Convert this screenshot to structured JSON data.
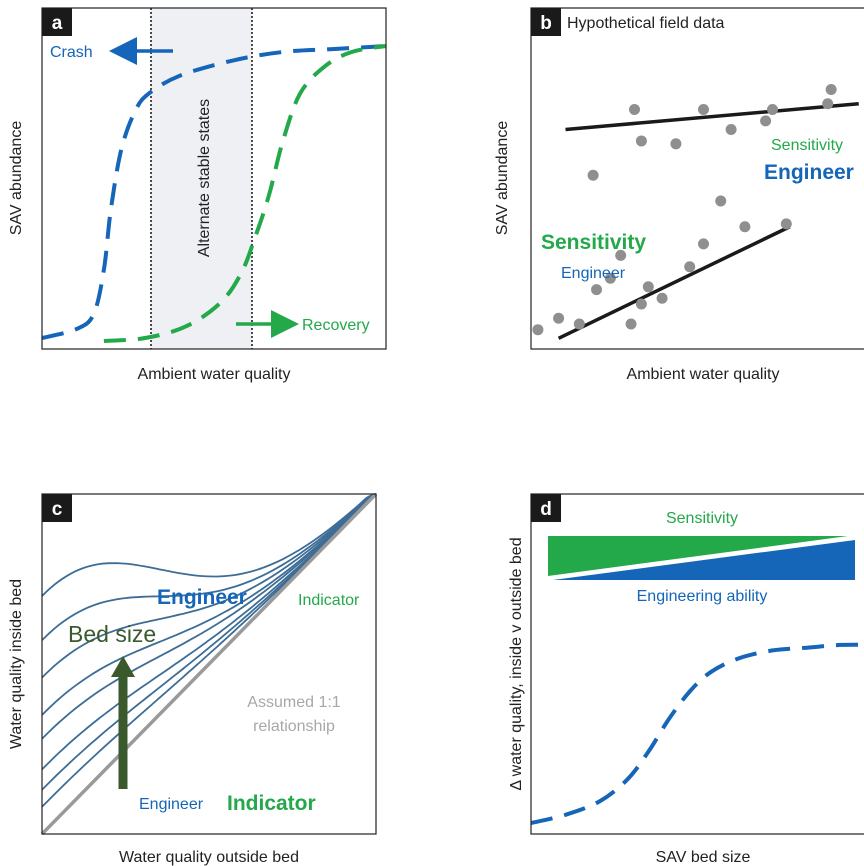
{
  "colors": {
    "blue": "#1565b8",
    "green": "#23a84a",
    "dark_green": "#3a5a2e",
    "gray_line": "#9a9a9a",
    "gray_dot": "#8f8f8f",
    "shade": "#eef0f4",
    "badge": "#1a1a1a"
  },
  "chart_data": [
    {
      "panel": "a",
      "type": "line",
      "title": "",
      "xlabel": "Ambient water quality",
      "ylabel": "SAV abundance",
      "xlim": [
        0,
        1
      ],
      "ylim": [
        0,
        1
      ],
      "shaded_band": {
        "x": [
          0.31,
          0.62
        ],
        "label": "Alternate stable states"
      },
      "series": [
        {
          "color": "blue",
          "style": "dashed",
          "x": [
            0.0,
            0.1,
            0.15,
            0.18,
            0.2,
            0.23,
            0.27,
            0.31,
            0.4,
            0.55,
            0.7,
            0.85,
            1.0
          ],
          "y": [
            0.02,
            0.05,
            0.1,
            0.25,
            0.45,
            0.65,
            0.78,
            0.84,
            0.9,
            0.95,
            0.98,
            0.99,
            1.0
          ]
        },
        {
          "color": "green",
          "style": "dashed",
          "x": [
            0.18,
            0.3,
            0.42,
            0.52,
            0.58,
            0.62,
            0.66,
            0.7,
            0.75,
            0.82,
            0.9,
            1.0
          ],
          "y": [
            0.01,
            0.02,
            0.06,
            0.14,
            0.24,
            0.36,
            0.5,
            0.68,
            0.84,
            0.93,
            0.98,
            1.0
          ]
        }
      ],
      "annotations": {
        "crash": "Crash",
        "recovery": "Recovery"
      }
    },
    {
      "panel": "b",
      "type": "scatter",
      "title": "Hypothetical field data",
      "xlabel": "Ambient water quality",
      "ylabel": "SAV abundance",
      "xlim": [
        0,
        1
      ],
      "ylim": [
        0,
        1
      ],
      "points": [
        {
          "x": 0.02,
          "y": 0.05
        },
        {
          "x": 0.08,
          "y": 0.09
        },
        {
          "x": 0.14,
          "y": 0.07
        },
        {
          "x": 0.19,
          "y": 0.19
        },
        {
          "x": 0.23,
          "y": 0.23
        },
        {
          "x": 0.26,
          "y": 0.31
        },
        {
          "x": 0.29,
          "y": 0.07
        },
        {
          "x": 0.32,
          "y": 0.14
        },
        {
          "x": 0.34,
          "y": 0.2
        },
        {
          "x": 0.38,
          "y": 0.16
        },
        {
          "x": 0.46,
          "y": 0.27
        },
        {
          "x": 0.5,
          "y": 0.35
        },
        {
          "x": 0.55,
          "y": 0.5
        },
        {
          "x": 0.62,
          "y": 0.41
        },
        {
          "x": 0.74,
          "y": 0.42
        },
        {
          "x": 0.18,
          "y": 0.59
        },
        {
          "x": 0.3,
          "y": 0.82
        },
        {
          "x": 0.32,
          "y": 0.71
        },
        {
          "x": 0.42,
          "y": 0.7
        },
        {
          "x": 0.5,
          "y": 0.82
        },
        {
          "x": 0.58,
          "y": 0.75
        },
        {
          "x": 0.68,
          "y": 0.78
        },
        {
          "x": 0.7,
          "y": 0.82
        },
        {
          "x": 0.86,
          "y": 0.84
        },
        {
          "x": 0.87,
          "y": 0.89
        },
        {
          "x": 0.99,
          "y": 0.9
        }
      ],
      "trend_lines": [
        {
          "x": [
            0.1,
            0.95
          ],
          "y": [
            0.75,
            0.84
          ]
        },
        {
          "x": [
            0.08,
            0.75
          ],
          "y": [
            0.02,
            0.41
          ]
        }
      ],
      "annotations": {
        "upper_small": "Sensitivity",
        "upper_large": "Engineer",
        "lower_large": "Sensitivity",
        "lower_small": "Engineer"
      }
    },
    {
      "panel": "c",
      "type": "line",
      "title": "",
      "xlabel": "Water quality outside bed",
      "ylabel": "Water quality inside bed",
      "xlim": [
        0,
        1
      ],
      "ylim": [
        0,
        1
      ],
      "reference_line": {
        "x": [
          0,
          1
        ],
        "y": [
          0,
          1
        ],
        "label_line1": "Assumed 1:1",
        "label_line2": "relationship"
      },
      "curves_y0": [
        0.08,
        0.13,
        0.19,
        0.28,
        0.35,
        0.46,
        0.57,
        0.7
      ],
      "arrow_label": "Bed size",
      "annotations": {
        "engineer_large": "Engineer",
        "indicator_small": "Indicator",
        "engineer_small": "Engineer",
        "indicator_large": "Indicator"
      }
    },
    {
      "panel": "d",
      "type": "line",
      "title": "",
      "xlabel": "SAV bed size",
      "ylabel": "Δ water quality, inside v outside bed",
      "xlim": [
        0,
        1
      ],
      "ylim": [
        0,
        1
      ],
      "series": [
        {
          "color": "blue",
          "style": "dashed",
          "x": [
            0.0,
            0.1,
            0.2,
            0.28,
            0.34,
            0.4,
            0.46,
            0.52,
            0.6,
            0.7,
            0.8,
            0.9,
            1.0
          ],
          "y": [
            0.04,
            0.07,
            0.12,
            0.2,
            0.3,
            0.42,
            0.52,
            0.59,
            0.64,
            0.67,
            0.68,
            0.69,
            0.69
          ]
        }
      ],
      "wedges": {
        "top_label": "Sensitivity",
        "bottom_label": "Engineering ability"
      }
    }
  ]
}
